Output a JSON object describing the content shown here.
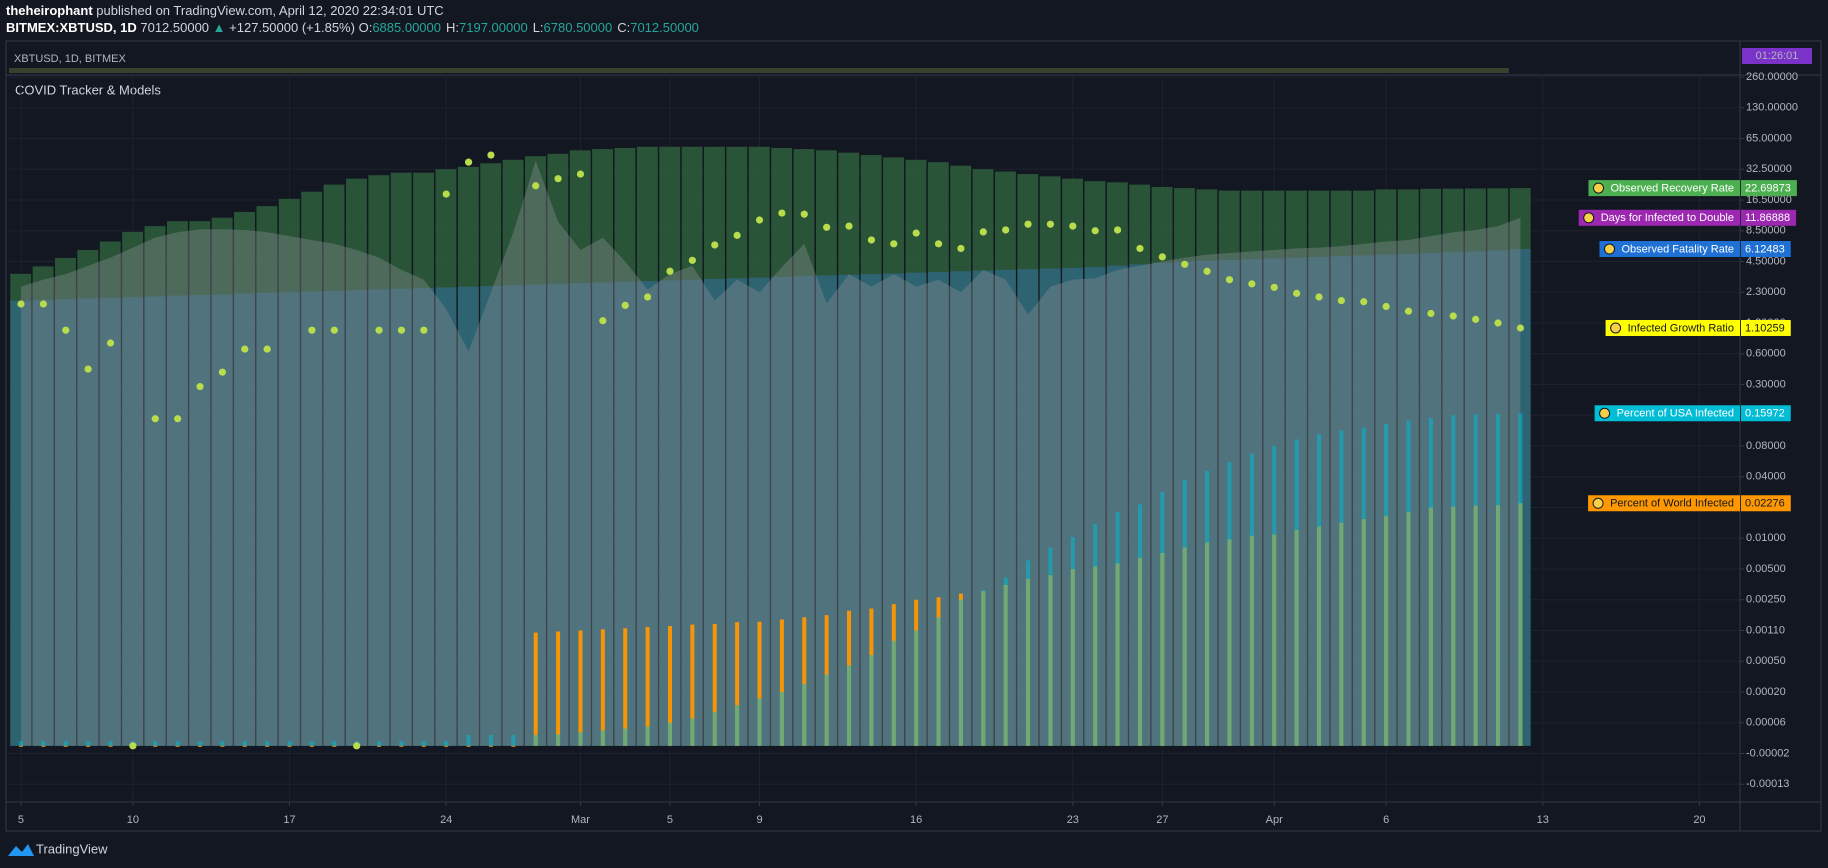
{
  "header": {
    "author": "theheirophant",
    "published": "published on TradingView.com, April 12, 2020 22:34:01 UTC",
    "symbol": "BITMEX:XBTUSD, 1D",
    "last": "7012.50000",
    "arrow": "▲",
    "change": "+127.50000 (+1.85%)",
    "ohlc": [
      {
        "label": "O:",
        "value": "6885.00000"
      },
      {
        "label": "H:",
        "value": "7197.00000"
      },
      {
        "label": "L:",
        "value": "6780.50000"
      },
      {
        "label": "C:",
        "value": "7012.50000"
      }
    ]
  },
  "strip": {
    "label": "XBTUSD, 1D, BITMEX",
    "timer": "01:26:01"
  },
  "footer": {
    "brand": "TradingView"
  },
  "chart_data": {
    "type": "combo",
    "title": "COVID Tracker & Models",
    "x": [
      "2020-02-05",
      "2020-02-06",
      "2020-02-07",
      "2020-02-08",
      "2020-02-09",
      "2020-02-10",
      "2020-02-11",
      "2020-02-12",
      "2020-02-13",
      "2020-02-14",
      "2020-02-15",
      "2020-02-16",
      "2020-02-17",
      "2020-02-18",
      "2020-02-19",
      "2020-02-20",
      "2020-02-21",
      "2020-02-22",
      "2020-02-23",
      "2020-02-24",
      "2020-02-25",
      "2020-02-26",
      "2020-02-27",
      "2020-02-28",
      "2020-02-29",
      "2020-03-01",
      "2020-03-02",
      "2020-03-03",
      "2020-03-04",
      "2020-03-05",
      "2020-03-06",
      "2020-03-07",
      "2020-03-08",
      "2020-03-09",
      "2020-03-10",
      "2020-03-11",
      "2020-03-12",
      "2020-03-13",
      "2020-03-14",
      "2020-03-15",
      "2020-03-16",
      "2020-03-17",
      "2020-03-18",
      "2020-03-19",
      "2020-03-20",
      "2020-03-21",
      "2020-03-22",
      "2020-03-23",
      "2020-03-24",
      "2020-03-25",
      "2020-03-26",
      "2020-03-27",
      "2020-03-28",
      "2020-03-29",
      "2020-03-30",
      "2020-03-31",
      "2020-04-01",
      "2020-04-02",
      "2020-04-03",
      "2020-04-04",
      "2020-04-05",
      "2020-04-06",
      "2020-04-07",
      "2020-04-08",
      "2020-04-09",
      "2020-04-10",
      "2020-04-11",
      "2020-04-12"
    ],
    "xlim": [
      "2020-02-04",
      "2020-04-22"
    ],
    "xticks": [
      {
        "value": "2020-02-05",
        "label": "5"
      },
      {
        "value": "2020-02-10",
        "label": "10"
      },
      {
        "value": "2020-02-17",
        "label": "17"
      },
      {
        "value": "2020-02-24",
        "label": "24"
      },
      {
        "value": "2020-03-01",
        "label": "Mar"
      },
      {
        "value": "2020-03-05",
        "label": "5"
      },
      {
        "value": "2020-03-09",
        "label": "9"
      },
      {
        "value": "2020-03-16",
        "label": "16"
      },
      {
        "value": "2020-03-23",
        "label": "23"
      },
      {
        "value": "2020-03-27",
        "label": "27"
      },
      {
        "value": "2020-04-01",
        "label": "Apr"
      },
      {
        "value": "2020-04-06",
        "label": "6"
      },
      {
        "value": "2020-04-13",
        "label": "13"
      },
      {
        "value": "2020-04-20",
        "label": "20"
      }
    ],
    "ylim": [
      -0.00013,
      260
    ],
    "yticks": [
      {
        "value": 260,
        "label": "260.00000"
      },
      {
        "value": 130,
        "label": "130.00000"
      },
      {
        "value": 65,
        "label": "65.00000"
      },
      {
        "value": 32.5,
        "label": "32.50000"
      },
      {
        "value": 16.5,
        "label": "16.50000"
      },
      {
        "value": 8.5,
        "label": "8.50000"
      },
      {
        "value": 4.5,
        "label": "4.50000"
      },
      {
        "value": 2.3,
        "label": "2.30000"
      },
      {
        "value": 1.2,
        "label": "1.20000"
      },
      {
        "value": 0.6,
        "label": "0.60000"
      },
      {
        "value": 0.3,
        "label": "0.30000"
      },
      {
        "value": 0.15,
        "label": "0.15000"
      },
      {
        "value": 0.08,
        "label": "0.08000"
      },
      {
        "value": 0.04,
        "label": "0.04000"
      },
      {
        "value": 0.02,
        "label": "0.02000"
      },
      {
        "value": 0.01,
        "label": "0.01000"
      },
      {
        "value": 0.005,
        "label": "0.00500"
      },
      {
        "value": 0.0025,
        "label": "0.00250"
      },
      {
        "value": 0.0011,
        "label": "0.00110"
      },
      {
        "value": 0.0005,
        "label": "0.00050"
      },
      {
        "value": 0.0002,
        "label": "0.00020"
      },
      {
        "value": 6e-05,
        "label": "0.00006"
      },
      {
        "value": -2e-05,
        "label": "-0.00002"
      },
      {
        "value": -0.00013,
        "label": "-0.00013"
      }
    ],
    "grid": true,
    "series": [
      {
        "name": "Observed Recovery Rate",
        "color": "#4caf50",
        "fill": "#2d5a3b",
        "style": "column",
        "values": [
          3.62,
          4.15,
          4.96,
          6.0,
          7.1,
          8.35,
          9.7,
          11.0,
          11.0,
          11.9,
          13.4,
          14.9,
          17.1,
          20.8,
          24.5,
          27.6,
          29.4,
          30.7,
          30.7,
          32.5,
          35.0,
          38.8,
          42.5,
          46.3,
          48.8,
          52.5,
          53.8,
          55.0,
          56.3,
          56.3,
          56.3,
          56.3,
          56.3,
          56.3,
          55.0,
          53.8,
          52.5,
          50.0,
          47.5,
          45.0,
          42.5,
          40.0,
          36.3,
          32.5,
          31.3,
          30.0,
          28.8,
          27.6,
          26.3,
          25.7,
          24.5,
          23.3,
          22.7,
          22.0,
          21.4,
          21.4,
          21.4,
          21.4,
          21.4,
          21.4,
          21.4,
          22.0,
          22.0,
          22.3,
          22.4,
          22.5,
          22.6,
          22.69873
        ]
      },
      {
        "name": "Days for Infected to Double",
        "color": "#9c27b0",
        "fill": "#8a8d94",
        "style": "area",
        "values": [
          2.7,
          3.2,
          3.6,
          4.2,
          5.0,
          6.3,
          7.6,
          8.3,
          8.9,
          8.9,
          8.7,
          8.3,
          7.8,
          7.3,
          6.8,
          6.0,
          5.0,
          3.9,
          3.2,
          1.7,
          0.65,
          2.3,
          8.3,
          41.3,
          10.9,
          6.0,
          7.6,
          4.5,
          2.5,
          3.6,
          4.2,
          2.0,
          3.2,
          2.3,
          4.1,
          6.8,
          1.9,
          3.6,
          2.7,
          3.6,
          2.7,
          3.2,
          2.3,
          3.9,
          3.2,
          1.5,
          2.7,
          3.2,
          3.3,
          3.9,
          4.2,
          4.5,
          5.0,
          5.4,
          5.6,
          5.8,
          6.0,
          6.2,
          6.3,
          6.5,
          6.8,
          7.1,
          7.3,
          7.8,
          8.3,
          8.7,
          9.7,
          11.86888
        ]
      },
      {
        "name": "Observed Fatality Rate",
        "color": "#1e70d4",
        "fill": "#2f6577",
        "style": "column",
        "values": [
          2.0,
          2.02,
          2.05,
          2.08,
          2.1,
          2.12,
          2.15,
          2.18,
          2.2,
          2.22,
          2.25,
          2.28,
          2.3,
          2.35,
          2.4,
          2.45,
          2.5,
          2.55,
          2.6,
          2.65,
          2.7,
          2.75,
          2.8,
          2.85,
          2.9,
          2.95,
          3.0,
          3.05,
          3.1,
          3.15,
          3.2,
          3.25,
          3.3,
          3.35,
          3.4,
          3.45,
          3.5,
          3.55,
          3.6,
          3.65,
          3.7,
          3.75,
          3.8,
          3.85,
          3.9,
          3.95,
          4.0,
          4.05,
          4.1,
          4.2,
          4.3,
          4.4,
          4.5,
          4.6,
          4.7,
          4.8,
          4.9,
          5.0,
          5.1,
          5.2,
          5.3,
          5.4,
          5.5,
          5.6,
          5.7,
          5.8,
          5.95,
          6.12483
        ]
      },
      {
        "name": "Infected Growth Ratio",
        "color": "#ffff00",
        "fill": "#b9dc4c",
        "style": "dots",
        "values": [
          1.88,
          1.88,
          1.06,
          0.45,
          0.81,
          0,
          0.142,
          0.142,
          0.29,
          0.42,
          0.69,
          0.69,
          null,
          1.06,
          1.06,
          0,
          1.06,
          1.06,
          1.06,
          19.6,
          40,
          47.5,
          null,
          23.9,
          27.6,
          30,
          1.28,
          1.83,
          2.13,
          3.8,
          4.65,
          6.65,
          7.9,
          11.3,
          13.1,
          12.8,
          9.4,
          9.7,
          7.3,
          6.8,
          8.2,
          6.8,
          6.2,
          8.35,
          8.7,
          10.2,
          10.2,
          9.7,
          8.5,
          8.7,
          6.2,
          5.1,
          4.3,
          3.8,
          3.2,
          2.9,
          2.65,
          2.26,
          2.13,
          2.0,
          1.96,
          1.79,
          1.62,
          1.54,
          1.45,
          1.33,
          1.2,
          1.10259
        ]
      },
      {
        "name": "Percent of World Infected",
        "color": "#ff9800",
        "fill": "#ff9800",
        "style": "bars",
        "values": [
          0,
          0,
          0,
          0,
          0,
          0,
          0,
          0,
          0,
          0,
          0,
          0,
          0,
          0,
          0,
          0,
          0,
          0,
          0,
          0,
          0,
          0,
          0,
          0.00106,
          0.00108,
          0.0011,
          0.00115,
          0.0012,
          0.00126,
          0.0013,
          0.00137,
          0.0014,
          0.00148,
          0.0015,
          0.0016,
          0.0017,
          0.0018,
          0.002,
          0.0021,
          0.0023,
          0.0025,
          0.0027,
          0.003,
          0.0032,
          0.0037,
          0.0042,
          0.0045,
          0.005,
          0.0054,
          0.0059,
          0.0068,
          0.0076,
          0.0085,
          0.0093,
          0.0098,
          0.0108,
          0.0112,
          0.0127,
          0.0138,
          0.015,
          0.0162,
          0.0173,
          0.0185,
          0.02,
          0.0206,
          0.0212,
          0.0215,
          0.02276
        ]
      },
      {
        "name": "Percent of USA Infected",
        "color": "#00bcd4",
        "fill": "#00bcd4",
        "style": "bars",
        "values": [
          1.2e-05,
          1.2e-05,
          1.2e-05,
          1.2e-05,
          1.2e-05,
          1.2e-05,
          1.2e-05,
          1.2e-05,
          1.2e-05,
          1.2e-05,
          1.2e-05,
          1.2e-05,
          1.2e-05,
          1.2e-05,
          1.2e-05,
          1.2e-05,
          1.2e-05,
          1.2e-05,
          1.2e-05,
          1.2e-05,
          2.8e-05,
          2.8e-05,
          2.8e-05,
          2.8e-05,
          3e-05,
          3.5e-05,
          4e-05,
          4.5e-05,
          5e-05,
          6e-05,
          8e-05,
          0.00011,
          0.00014,
          0.00017,
          0.0002,
          0.00028,
          0.00037,
          0.00046,
          0.00062,
          0.0009,
          0.0011,
          0.0017,
          0.0025,
          0.0033,
          0.0043,
          0.0064,
          0.0085,
          0.0104,
          0.0146,
          0.0185,
          0.022,
          0.03,
          0.038,
          0.048,
          0.059,
          0.07,
          0.08,
          0.095,
          0.107,
          0.115,
          0.122,
          0.13,
          0.138,
          0.144,
          0.15,
          0.154,
          0.157,
          0.15972
        ]
      }
    ]
  }
}
